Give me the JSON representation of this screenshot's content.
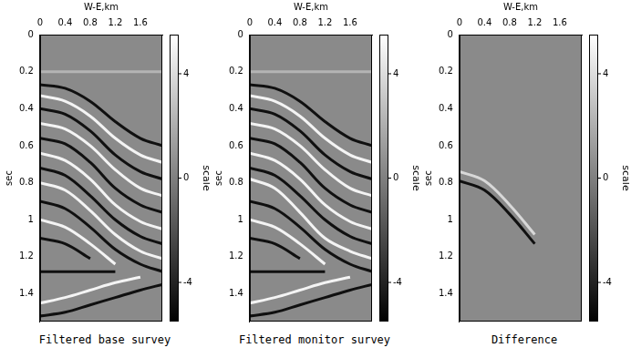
{
  "chart_data": [
    {
      "type": "line",
      "title": "Filtered base survey",
      "x_label": "W-E,km",
      "y_label": "sec",
      "x": [
        0,
        0.4,
        0.8,
        1.2,
        1.6,
        1.95
      ],
      "xlim": [
        0,
        1.95
      ],
      "xticks": [
        0,
        0.4,
        0.8,
        1.2,
        1.6
      ],
      "ylim": [
        0,
        1.55
      ],
      "yticks": [
        0,
        0.2,
        0.4,
        0.6,
        0.8,
        1,
        1.2,
        1.4
      ],
      "grid": false,
      "colorbar": {
        "label": "scale",
        "range": [
          -5.5,
          5.5
        ],
        "ticks": [
          -4,
          0,
          4
        ]
      },
      "series": [
        {
          "color": "#b4b4b4",
          "values": [
            0.2,
            0.2,
            0.2,
            0.2,
            0.2,
            0.2
          ]
        },
        {
          "color": "#101010",
          "values": [
            0.27,
            0.29,
            0.36,
            0.47,
            0.56,
            0.6
          ]
        },
        {
          "color": "#f4f4f4",
          "values": [
            0.33,
            0.36,
            0.44,
            0.56,
            0.65,
            0.69
          ]
        },
        {
          "color": "#101010",
          "values": [
            0.4,
            0.43,
            0.52,
            0.65,
            0.74,
            0.78
          ]
        },
        {
          "color": "#f4f4f4",
          "values": [
            0.48,
            0.51,
            0.6,
            0.73,
            0.83,
            0.87
          ]
        },
        {
          "color": "#101010",
          "values": [
            0.56,
            0.59,
            0.69,
            0.83,
            0.92,
            0.96
          ]
        },
        {
          "color": "#f4f4f4",
          "values": [
            0.64,
            0.68,
            0.78,
            0.92,
            1.01,
            1.05
          ]
        },
        {
          "color": "#101010",
          "values": [
            0.72,
            0.76,
            0.87,
            1.0,
            1.09,
            1.13
          ]
        },
        {
          "color": "#f4f4f4",
          "values": [
            0.8,
            0.84,
            0.95,
            1.08,
            1.17,
            1.21
          ]
        },
        {
          "color": "#101010",
          "values": [
            0.9,
            0.94,
            1.04,
            1.16,
            1.24,
            1.28
          ]
        },
        {
          "color": "#f4f4f4",
          "values": [
            1.0,
            1.04,
            1.13,
            1.24,
            null,
            null
          ]
        },
        {
          "color": "#101010",
          "values": [
            1.1,
            1.13,
            1.21,
            null,
            null,
            null
          ]
        },
        {
          "color": "#101010",
          "values": [
            1.28,
            1.28,
            1.28,
            1.28,
            null,
            null
          ]
        },
        {
          "color": "#f4f4f4",
          "values": [
            1.45,
            1.42,
            1.38,
            1.34,
            1.31,
            null
          ]
        },
        {
          "color": "#101010",
          "values": [
            1.52,
            1.5,
            1.46,
            1.42,
            1.38,
            1.35
          ]
        }
      ]
    },
    {
      "type": "line",
      "title": "Filtered monitor survey",
      "x_label": "W-E,km",
      "y_label": "sec",
      "x": [
        0,
        0.4,
        0.8,
        1.2,
        1.6,
        1.95
      ],
      "xlim": [
        0,
        1.95
      ],
      "xticks": [
        0,
        0.4,
        0.8,
        1.2,
        1.6
      ],
      "ylim": [
        0,
        1.55
      ],
      "yticks": [
        0,
        0.2,
        0.4,
        0.6,
        0.8,
        1,
        1.2,
        1.4
      ],
      "grid": false,
      "colorbar": {
        "label": "scale",
        "range": [
          -5.5,
          5.5
        ],
        "ticks": [
          -4,
          0,
          4
        ]
      },
      "series": [
        {
          "color": "#b4b4b4",
          "values": [
            0.2,
            0.2,
            0.2,
            0.2,
            0.2,
            0.2
          ]
        },
        {
          "color": "#101010",
          "values": [
            0.27,
            0.29,
            0.36,
            0.47,
            0.56,
            0.6
          ]
        },
        {
          "color": "#f4f4f4",
          "values": [
            0.33,
            0.36,
            0.44,
            0.56,
            0.65,
            0.69
          ]
        },
        {
          "color": "#101010",
          "values": [
            0.4,
            0.43,
            0.52,
            0.65,
            0.74,
            0.78
          ]
        },
        {
          "color": "#f4f4f4",
          "values": [
            0.48,
            0.51,
            0.6,
            0.73,
            0.83,
            0.87
          ]
        },
        {
          "color": "#101010",
          "values": [
            0.56,
            0.59,
            0.69,
            0.83,
            0.92,
            0.96
          ]
        },
        {
          "color": "#f4f4f4",
          "values": [
            0.64,
            0.68,
            0.78,
            0.92,
            1.01,
            1.05
          ]
        },
        {
          "color": "#101010",
          "values": [
            0.72,
            0.76,
            0.87,
            1.0,
            1.09,
            1.13
          ]
        },
        {
          "color": "#f4f4f4",
          "values": [
            0.78,
            0.83,
            0.96,
            1.1,
            1.17,
            1.21
          ]
        },
        {
          "color": "#101010",
          "values": [
            0.9,
            0.94,
            1.04,
            1.16,
            1.24,
            1.28
          ]
        },
        {
          "color": "#f4f4f4",
          "values": [
            1.0,
            1.04,
            1.13,
            1.24,
            null,
            null
          ]
        },
        {
          "color": "#101010",
          "values": [
            1.1,
            1.13,
            1.21,
            null,
            null,
            null
          ]
        },
        {
          "color": "#101010",
          "values": [
            1.28,
            1.28,
            1.28,
            1.28,
            null,
            null
          ]
        },
        {
          "color": "#f4f4f4",
          "values": [
            1.45,
            1.42,
            1.38,
            1.34,
            1.31,
            null
          ]
        },
        {
          "color": "#101010",
          "values": [
            1.52,
            1.5,
            1.46,
            1.42,
            1.38,
            1.35
          ]
        }
      ]
    },
    {
      "type": "line",
      "title": "Difference",
      "x_label": "W-E,km",
      "y_label": "sec",
      "x": [
        0,
        0.4,
        0.8,
        1.2,
        1.6,
        1.95
      ],
      "xlim": [
        0,
        1.95
      ],
      "xticks": [
        0,
        0.4,
        0.8,
        1.2,
        1.6
      ],
      "ylim": [
        0,
        1.55
      ],
      "yticks": [
        0,
        0.2,
        0.4,
        0.6,
        0.8,
        1,
        1.2,
        1.4
      ],
      "grid": false,
      "colorbar": {
        "label": "scale",
        "range": [
          -5.5,
          5.5
        ],
        "ticks": [
          -4,
          0,
          4
        ]
      },
      "series": [
        {
          "color": "#d8d8d8",
          "values": [
            0.74,
            0.79,
            0.92,
            1.08,
            null,
            null
          ]
        },
        {
          "color": "#101010",
          "values": [
            0.79,
            0.84,
            0.97,
            1.13,
            null,
            null
          ]
        }
      ]
    }
  ]
}
